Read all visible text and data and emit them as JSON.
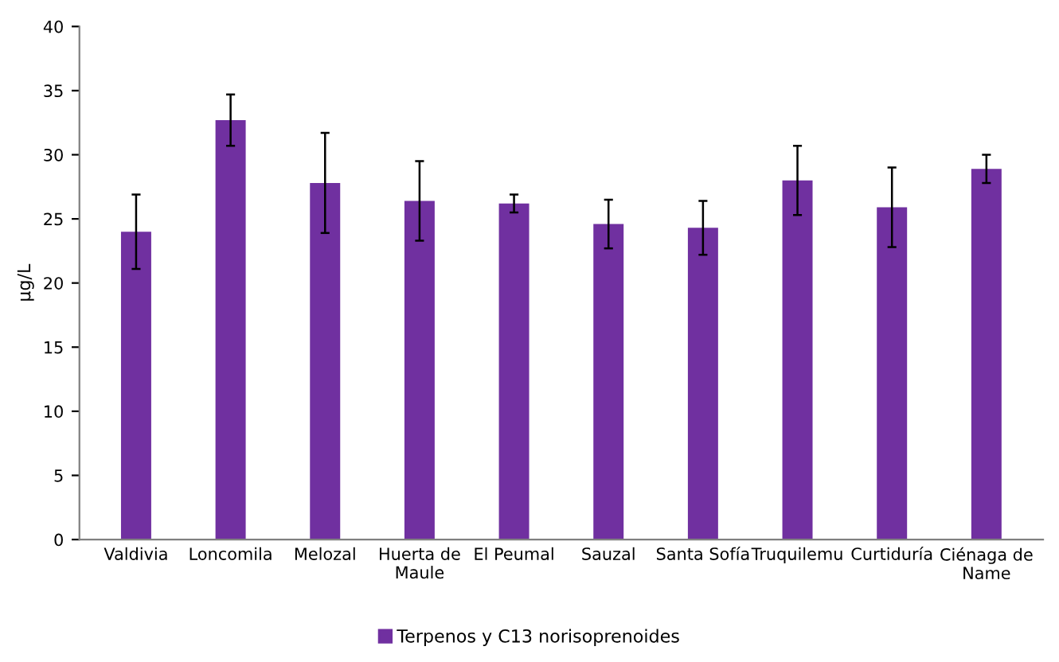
{
  "chart_data": {
    "type": "bar",
    "ylabel": "µg/L",
    "categories": [
      "Valdivia",
      "Loncomila",
      "Melozal",
      "Huerta de Maule",
      "El Peumal",
      "Sauzal",
      "Santa Sofía",
      "Truquilemu",
      "Curtiduría",
      "Ciénaga de Name"
    ],
    "series": [
      {
        "name": "Terpenos y C13 norisoprenoides",
        "color": "#7030a0",
        "values": [
          24,
          32.7,
          27.8,
          26.4,
          26.2,
          24.6,
          24.3,
          28,
          25.9,
          28.9
        ],
        "errors": [
          2.9,
          2,
          3.9,
          3.1,
          0.7,
          1.9,
          2.1,
          2.7,
          3.1,
          1.1
        ]
      }
    ],
    "ylim": [
      0,
      40
    ],
    "yticks": [
      0,
      5,
      10,
      15,
      20,
      25,
      30,
      35,
      40
    ],
    "grid": false,
    "legend": "bottom"
  }
}
